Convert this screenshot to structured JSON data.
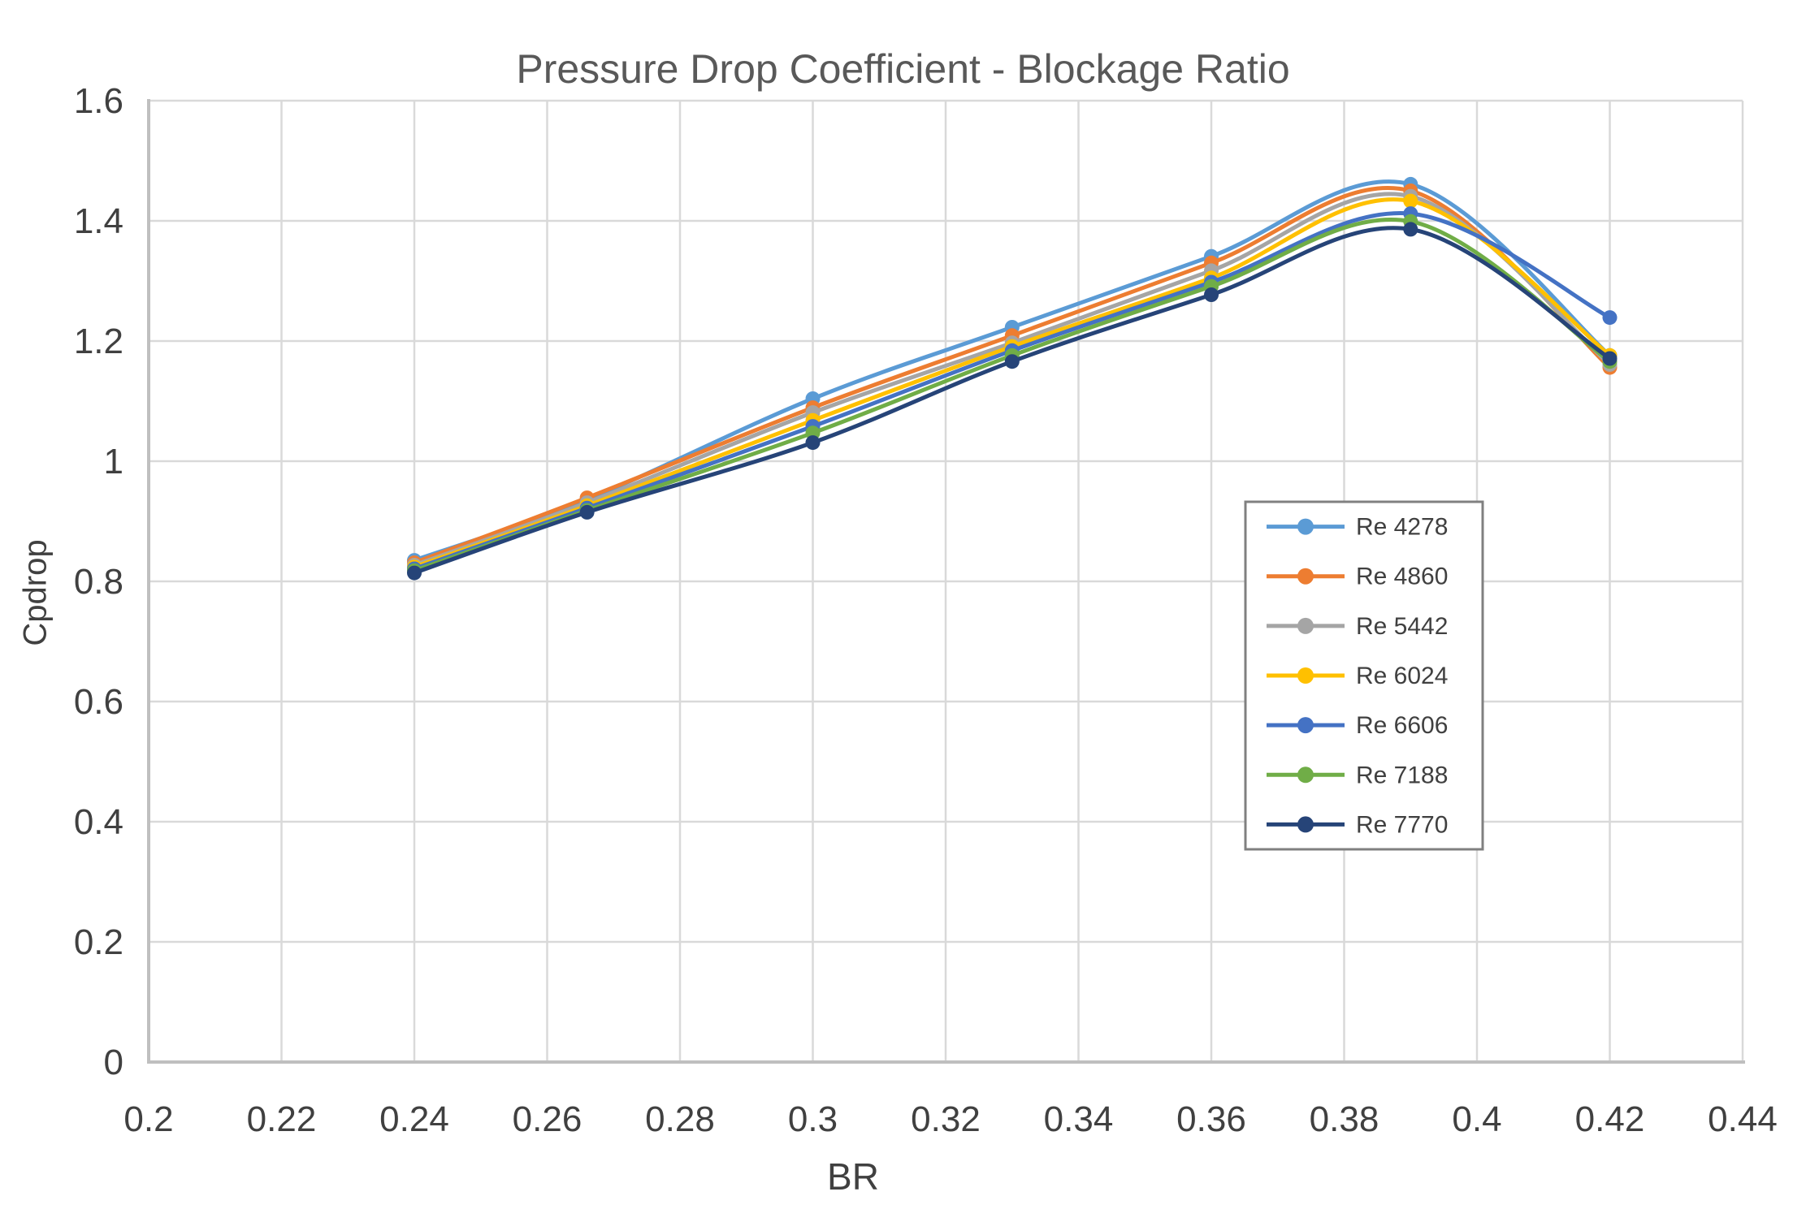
{
  "chart_data": {
    "type": "line",
    "title": "Pressure Drop Coefficient - Blockage Ratio",
    "xlabel": "BR",
    "ylabel": "Cpdrop",
    "xlim": [
      0.2,
      0.44
    ],
    "ylim": [
      0,
      1.6
    ],
    "grid": true,
    "legend_position": "inside-right",
    "marker": "circle",
    "smooth_lines": true,
    "x_ticks": [
      {
        "v": 0.2,
        "label": "0.2"
      },
      {
        "v": 0.22,
        "label": "0.22"
      },
      {
        "v": 0.24,
        "label": "0.24"
      },
      {
        "v": 0.26,
        "label": "0.26"
      },
      {
        "v": 0.28,
        "label": "0.28"
      },
      {
        "v": 0.3,
        "label": "0.3"
      },
      {
        "v": 0.32,
        "label": "0.32"
      },
      {
        "v": 0.34,
        "label": "0.34"
      },
      {
        "v": 0.36,
        "label": "0.36"
      },
      {
        "v": 0.38,
        "label": "0.38"
      },
      {
        "v": 0.4,
        "label": "0.4"
      },
      {
        "v": 0.42,
        "label": "0.42"
      },
      {
        "v": 0.44,
        "label": "0.44"
      }
    ],
    "y_ticks": [
      {
        "v": 0,
        "label": "0"
      },
      {
        "v": 0.2,
        "label": "0.2"
      },
      {
        "v": 0.4,
        "label": "0.4"
      },
      {
        "v": 0.6,
        "label": "0.6"
      },
      {
        "v": 0.8,
        "label": "0.8"
      },
      {
        "v": 1,
        "label": "1"
      },
      {
        "v": 1.2,
        "label": "1.2"
      },
      {
        "v": 1.4,
        "label": "1.4"
      },
      {
        "v": 1.6,
        "label": "1.6"
      }
    ],
    "x": [
      0.24,
      0.266,
      0.3,
      0.33,
      0.36,
      0.39,
      0.42
    ],
    "series": [
      {
        "name": "Re 4278",
        "color": "#5B9BD5",
        "values": [
          0.835,
          0.936,
          1.104,
          1.223,
          1.341,
          1.461,
          1.176
        ]
      },
      {
        "name": "Re 4860",
        "color": "#ED7D31",
        "values": [
          0.831,
          0.939,
          1.089,
          1.209,
          1.33,
          1.45,
          1.156
        ]
      },
      {
        "name": "Re 5442",
        "color": "#A5A5A5",
        "values": [
          0.827,
          0.931,
          1.081,
          1.197,
          1.317,
          1.441,
          1.161
        ]
      },
      {
        "name": "Re 6024",
        "color": "#FFC000",
        "values": [
          0.824,
          0.926,
          1.068,
          1.191,
          1.305,
          1.433,
          1.176
        ]
      },
      {
        "name": "Re 6606",
        "color": "#4472C4",
        "values": [
          0.821,
          0.922,
          1.058,
          1.184,
          1.298,
          1.412,
          1.239
        ]
      },
      {
        "name": "Re 7188",
        "color": "#70AD47",
        "values": [
          0.818,
          0.918,
          1.047,
          1.176,
          1.291,
          1.399,
          1.166
        ]
      },
      {
        "name": "Re 7770",
        "color": "#264478",
        "values": [
          0.814,
          0.915,
          1.031,
          1.166,
          1.277,
          1.386,
          1.171
        ]
      }
    ],
    "colors": {
      "gridline": "#D9D9D9",
      "axis_line": "#BFBFBF",
      "tick_label": "#404040",
      "title": "#595959",
      "legend_border": "#808080",
      "legend_text": "#404040",
      "background": "#FFFFFF"
    }
  }
}
